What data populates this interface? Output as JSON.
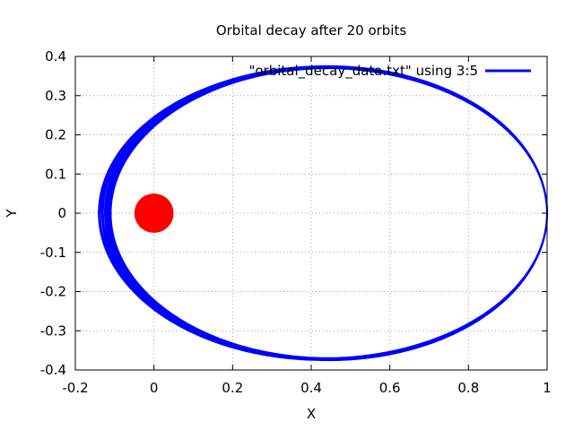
{
  "chart_data": {
    "type": "line",
    "title": "Orbital decay after 20 orbits",
    "xlabel": "X",
    "ylabel": "Y",
    "xlim": [
      -0.2,
      1.0
    ],
    "ylim": [
      -0.4,
      0.4
    ],
    "xticks": [
      -0.2,
      0,
      0.2,
      0.4,
      0.6,
      0.8,
      1
    ],
    "yticks": [
      -0.4,
      -0.3,
      -0.2,
      -0.1,
      0,
      0.1,
      0.2,
      0.3,
      0.4
    ],
    "xtick_labels": [
      "-0.2",
      "0",
      "0.2",
      "0.4",
      "0.6",
      "0.8",
      "1"
    ],
    "ytick_labels": [
      "-0.4",
      "-0.3",
      "-0.2",
      "-0.1",
      "0",
      "0.1",
      "0.2",
      "0.3",
      "0.4"
    ],
    "grid": true,
    "legend_position": "top-right",
    "series": [
      {
        "name": "\"orbital_decay_data.txt\" using 3:5",
        "color": "#0000ff",
        "orbit": {
          "num_orbits": 20,
          "apoapsis_x": 1.0,
          "semi_major_axis": [
            0.57,
            0.555
          ],
          "semi_minor_axis": [
            0.375,
            0.37
          ],
          "periapsis_x": [
            -0.14,
            -0.11
          ]
        }
      }
    ],
    "central_body": {
      "x": 0,
      "y": 0,
      "radius": 0.05,
      "color": "#ff0000"
    }
  }
}
